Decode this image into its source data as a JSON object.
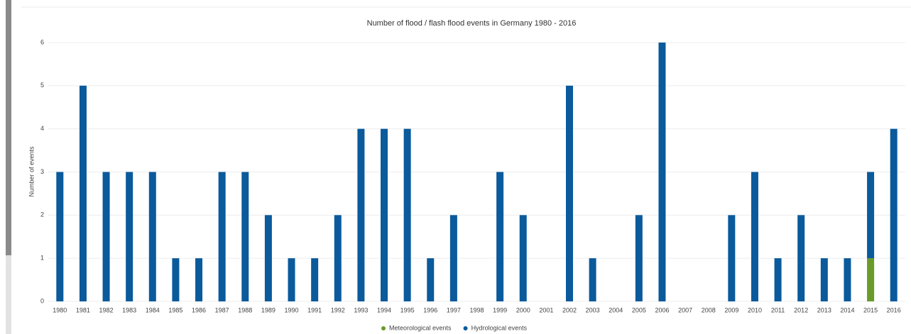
{
  "chart_data": {
    "type": "stacked_bar",
    "title": "Number of flood / flash flood events in Germany 1980 - 2016",
    "y_label": "Number of events",
    "categories": [
      "1980",
      "1981",
      "1982",
      "1983",
      "1984",
      "1985",
      "1986",
      "1987",
      "1988",
      "1989",
      "1990",
      "1991",
      "1992",
      "1993",
      "1994",
      "1995",
      "1996",
      "1997",
      "1998",
      "1999",
      "2000",
      "2001",
      "2002",
      "2003",
      "2004",
      "2005",
      "2006",
      "2007",
      "2008",
      "2009",
      "2010",
      "2011",
      "2012",
      "2013",
      "2014",
      "2015",
      "2016"
    ],
    "series": [
      {
        "name": "Meteorological events",
        "color": "#6a9a2a",
        "values": [
          0,
          0,
          0,
          0,
          0,
          0,
          0,
          0,
          0,
          0,
          0,
          0,
          0,
          0,
          0,
          0,
          0,
          0,
          0,
          0,
          0,
          0,
          0,
          0,
          0,
          0,
          0,
          0,
          0,
          0,
          0,
          0,
          0,
          0,
          0,
          1,
          0
        ]
      },
      {
        "name": "Hydrological events",
        "color": "#0a5a9c",
        "values": [
          3,
          5,
          3,
          3,
          3,
          1,
          1,
          3,
          3,
          2,
          1,
          1,
          2,
          4,
          4,
          4,
          1,
          2,
          0,
          3,
          2,
          0,
          5,
          1,
          0,
          2,
          6,
          0,
          0,
          2,
          3,
          1,
          2,
          1,
          1,
          2,
          4
        ]
      }
    ],
    "ylim": [
      0,
      6
    ],
    "yticks": [
      0,
      1,
      2,
      3,
      4,
      5,
      6
    ],
    "grid": true,
    "legend": "bottom"
  }
}
